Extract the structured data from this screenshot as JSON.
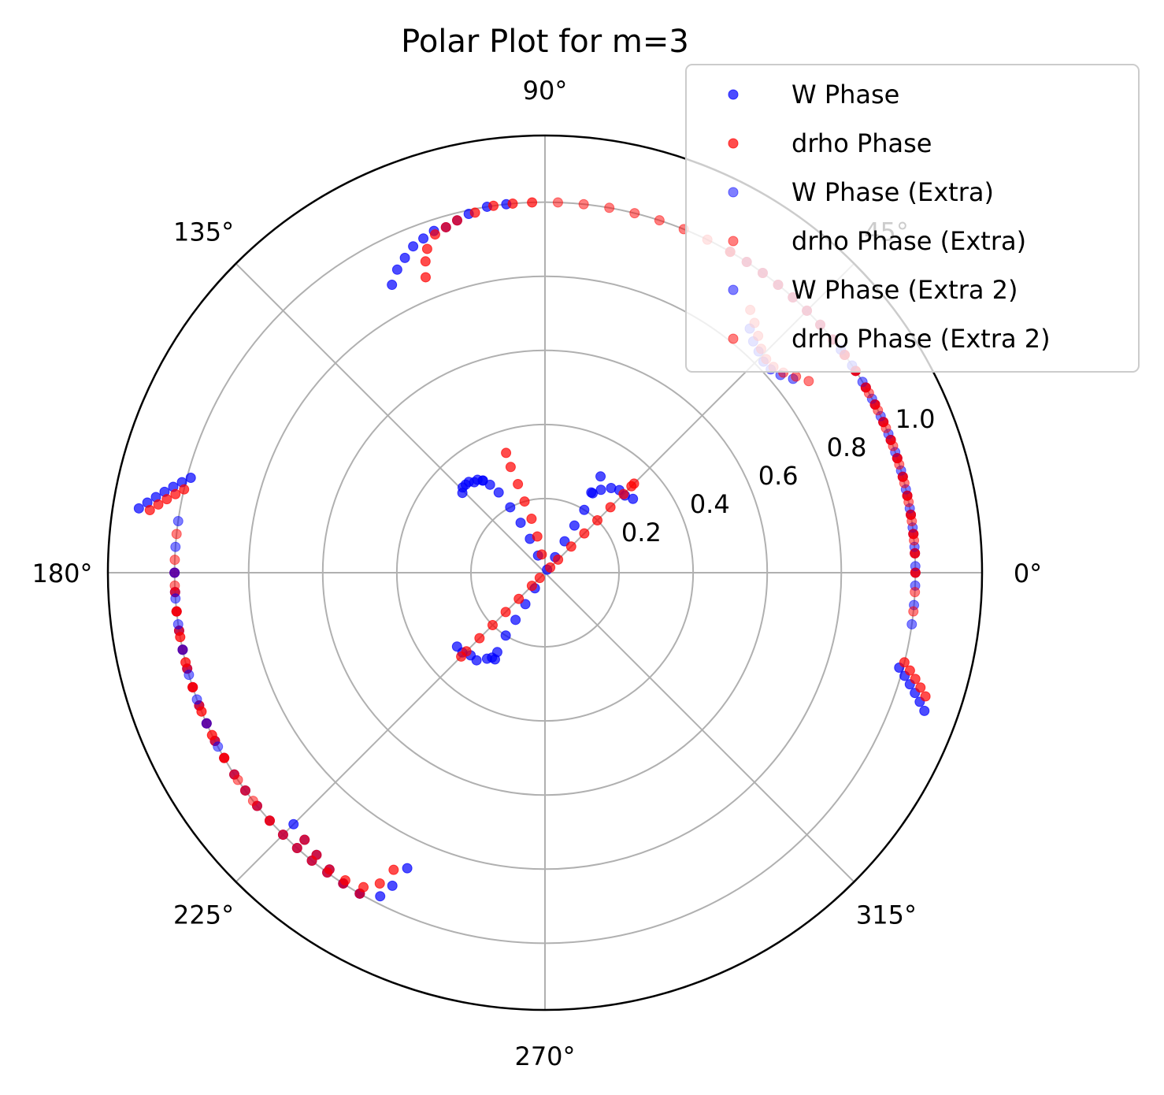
{
  "chart_data": {
    "type": "scatter",
    "projection": "polar",
    "title": "Polar Plot for m=3",
    "theta_ticks": [
      "0°",
      "45°",
      "90°",
      "135°",
      "180°",
      "225°",
      "270°",
      "315°"
    ],
    "theta_tick_values_deg": [
      0,
      45,
      90,
      135,
      180,
      225,
      270,
      315
    ],
    "r_ticks": [
      "0.2",
      "0.4",
      "0.6",
      "0.8",
      "1.0"
    ],
    "r_tick_values": [
      0.2,
      0.4,
      0.6,
      0.8,
      1.0
    ],
    "rlim": [
      0,
      1.18
    ],
    "grid": true,
    "legend_position": "top-right",
    "series": [
      {
        "name": "W Phase",
        "color": "#0000ff",
        "alpha": 0.7,
        "groups": [
          {
            "theta_deg": [
              0,
              3,
              6,
              9,
              12,
              15,
              18,
              21,
              24,
              27,
              30,
              33,
              36,
              39,
              42,
              45,
              48,
              51,
              54,
              57,
              60
            ],
            "r": [
              1.0,
              1.0,
              1.0,
              1.0,
              1.0,
              1.0,
              1.0,
              1.0,
              1.0,
              1.0,
              1.0,
              1.0,
              1.0,
              1.0,
              1.0,
              1.0,
              1.0,
              1.0,
              1.0,
              1.0,
              1.0
            ]
          },
          {
            "theta_deg": [
              -15,
              -16,
              -17,
              -18,
              -19,
              -20
            ],
            "r": [
              0.99,
              1.01,
              1.03,
              1.05,
              1.07,
              1.09
            ]
          },
          {
            "theta_deg": [
              96,
              99,
              102,
              104,
              106,
              108,
              110,
              112,
              114,
              116,
              118
            ],
            "r": [
              1.0,
              1.0,
              0.99,
              0.98,
              0.97,
              0.97,
              0.96,
              0.95,
              0.93,
              0.91,
              0.88
            ]
          },
          {
            "theta_deg": [
              165,
              166,
              167,
              168,
              169,
              170,
              171
            ],
            "r": [
              0.99,
              1.01,
              1.03,
              1.05,
              1.07,
              1.09,
              1.11
            ]
          },
          {
            "theta_deg": [
              180,
              183,
              186,
              189,
              192,
              195,
              198,
              201,
              204,
              207,
              210,
              213,
              216,
              219,
              222,
              225,
              228,
              231,
              234,
              237,
              240
            ],
            "r": [
              1.0,
              1.0,
              1.0,
              1.0,
              1.0,
              1.0,
              1.0,
              1.0,
              1.0,
              1.0,
              1.0,
              1.0,
              1.0,
              1.0,
              1.0,
              1.0,
              1.0,
              1.0,
              1.0,
              1.0,
              1.0
            ]
          },
          {
            "theta_deg": [
              225,
              228,
              231,
              234,
              237,
              240,
              243,
              244,
              245
            ],
            "r": [
              0.96,
              0.97,
              0.98,
              0.99,
              1.0,
              1.0,
              0.98,
              0.94,
              0.88
            ]
          },
          {
            "theta_deg": [
              56,
              57,
              58,
              58,
              58,
              59,
              60
            ],
            "r": [
              0.01,
              0.05,
              0.1,
              0.15,
              0.2,
              0.25,
              0.3
            ]
          },
          {
            "theta_deg": [
              40,
              44,
              48,
              52,
              56,
              60
            ],
            "r": [
              0.31,
              0.3,
              0.3,
              0.29,
              0.27,
              0.25
            ]
          },
          {
            "theta_deg": [
              112,
              114,
              116,
              118,
              120,
              122,
              124
            ],
            "r": [
              0.05,
              0.1,
              0.15,
              0.2,
              0.25,
              0.28,
              0.3
            ]
          },
          {
            "theta_deg": [
              124,
              126,
              128,
              130,
              132,
              134,
              136
            ],
            "r": [
              0.3,
              0.31,
              0.31,
              0.32,
              0.32,
              0.32,
              0.31
            ]
          },
          {
            "theta_deg": [
              237,
              238,
              238,
              238,
              239,
              240
            ],
            "r": [
              0.05,
              0.1,
              0.15,
              0.2,
              0.25,
              0.27
            ]
          },
          {
            "theta_deg": [
              220,
              224,
              228,
              232,
              236,
              238
            ],
            "r": [
              0.31,
              0.31,
              0.3,
              0.3,
              0.28,
              0.27
            ]
          }
        ]
      },
      {
        "name": "drho Phase",
        "color": "#ff0000",
        "alpha": 0.7,
        "groups": [
          {
            "theta_deg": [
              0,
              3,
              6,
              9,
              12,
              15,
              18,
              21,
              24,
              27,
              30,
              33,
              36,
              39,
              42,
              45,
              48,
              51,
              54,
              57,
              60
            ],
            "r": [
              1.0,
              1.0,
              1.0,
              1.0,
              1.0,
              1.0,
              1.0,
              1.0,
              1.0,
              1.0,
              1.0,
              1.0,
              1.0,
              1.0,
              1.0,
              1.0,
              1.0,
              1.0,
              1.0,
              1.0,
              1.0
            ]
          },
          {
            "theta_deg": [
              -14,
              -15,
              -16,
              -17,
              -18
            ],
            "r": [
              1.0,
              1.02,
              1.04,
              1.06,
              1.08
            ]
          },
          {
            "theta_deg": [
              92,
              95,
              98,
              101,
              104,
              106,
              108,
              110,
              111,
              112
            ],
            "r": [
              1.0,
              1.0,
              1.0,
              0.99,
              0.98,
              0.97,
              0.96,
              0.93,
              0.9,
              0.86
            ]
          },
          {
            "theta_deg": [
              167,
              168,
              169,
              170,
              171
            ],
            "r": [
              1.0,
              1.02,
              1.04,
              1.06,
              1.08
            ]
          },
          {
            "theta_deg": [
              180,
              183,
              186,
              189,
              192,
              195,
              198,
              201,
              204,
              207,
              210,
              213,
              216,
              219,
              222,
              225,
              228,
              231,
              234,
              237,
              240
            ],
            "r": [
              1.0,
              1.0,
              1.0,
              1.0,
              1.0,
              1.0,
              1.0,
              1.0,
              1.0,
              1.0,
              1.0,
              1.0,
              1.0,
              1.0,
              1.0,
              1.0,
              1.0,
              1.0,
              1.0,
              1.0,
              1.0
            ]
          },
          {
            "theta_deg": [
              228,
              231,
              234,
              237,
              240,
              242,
              243
            ],
            "r": [
              0.97,
              0.98,
              0.99,
              0.99,
              0.98,
              0.95,
              0.9
            ]
          },
          {
            "theta_deg": [
              45,
              45,
              45,
              45,
              45,
              45,
              45,
              45,
              45
            ],
            "r": [
              0.02,
              0.05,
              0.1,
              0.15,
              0.2,
              0.25,
              0.3,
              0.33,
              0.34
            ]
          },
          {
            "theta_deg": [
              225,
              225,
              225,
              225,
              225,
              225,
              225,
              225
            ],
            "r": [
              0.02,
              0.05,
              0.1,
              0.15,
              0.2,
              0.25,
              0.3,
              0.32
            ]
          },
          {
            "theta_deg": [
              100,
              102,
              104,
              106,
              107,
              108,
              108
            ],
            "r": [
              0.05,
              0.1,
              0.15,
              0.2,
              0.25,
              0.3,
              0.34
            ]
          }
        ]
      },
      {
        "name": "W Phase (Extra)",
        "color": "#0000ff",
        "alpha": 0.5,
        "groups": [
          {
            "theta_deg": [
              -8,
              -5,
              -2,
              1,
              4,
              7,
              10,
              13,
              16,
              19,
              22,
              25,
              28,
              31,
              34,
              37
            ],
            "r": [
              1.0,
              1.0,
              1.0,
              1.0,
              1.0,
              1.0,
              1.0,
              1.0,
              1.0,
              1.0,
              1.0,
              1.0,
              1.0,
              1.0,
              1.0,
              1.0
            ]
          },
          {
            "theta_deg": [
              172,
              176,
              180,
              184,
              188,
              192,
              196,
              200,
              204,
              208
            ],
            "r": [
              1.0,
              1.0,
              1.0,
              1.0,
              1.0,
              1.0,
              1.0,
              1.0,
              1.0,
              1.0
            ]
          }
        ]
      },
      {
        "name": "drho Phase (Extra)",
        "color": "#ff0000",
        "alpha": 0.5,
        "groups": [
          {
            "theta_deg": [
              -6,
              -3,
              0,
              3,
              6,
              9,
              12,
              15,
              18,
              21,
              24,
              27,
              30,
              33,
              36
            ],
            "r": [
              1.0,
              1.0,
              1.0,
              1.0,
              1.0,
              1.0,
              1.0,
              1.0,
              1.0,
              1.0,
              1.0,
              1.0,
              1.0,
              1.0,
              1.0
            ]
          },
          {
            "theta_deg": [
              174,
              178,
              182,
              186,
              190,
              194,
              198,
              202,
              206,
              210
            ],
            "r": [
              1.0,
              1.0,
              1.0,
              1.0,
              1.0,
              1.0,
              1.0,
              1.0,
              1.0,
              1.0
            ]
          }
        ]
      },
      {
        "name": "W Phase (Extra 2)",
        "color": "#0000ff",
        "alpha": 0.5,
        "groups": [
          {
            "theta_deg": [
              38,
              40,
              42,
              44,
              46,
              48,
              50
            ],
            "r": [
              0.85,
              0.83,
              0.82,
              0.82,
              0.83,
              0.84,
              0.86
            ]
          }
        ]
      },
      {
        "name": "drho Phase (Extra 2)",
        "color": "#ff0000",
        "alpha": 0.5,
        "groups": [
          {
            "theta_deg": [
              36,
              38,
              40,
              42,
              44,
              46,
              48,
              50,
              52
            ],
            "r": [
              0.88,
              0.86,
              0.84,
              0.83,
              0.83,
              0.84,
              0.86,
              0.88,
              0.9
            ]
          },
          {
            "theta_deg": [
              60,
              64,
              68,
              72,
              76,
              80,
              84,
              88
            ],
            "r": [
              1.0,
              1.0,
              1.0,
              1.0,
              1.0,
              1.0,
              1.0,
              1.0
            ]
          },
          {
            "theta_deg": [
              5,
              8,
              11,
              14,
              17,
              20,
              23,
              26,
              29
            ],
            "r": [
              1.0,
              1.0,
              1.0,
              1.0,
              1.0,
              1.0,
              1.0,
              1.0,
              1.0
            ]
          },
          {
            "theta_deg": [
              186,
              190,
              194,
              198,
              202,
              206,
              210,
              214,
              218,
              222
            ],
            "r": [
              1.0,
              1.0,
              1.0,
              1.0,
              1.0,
              1.0,
              1.0,
              1.0,
              1.0,
              1.0
            ]
          }
        ]
      }
    ]
  }
}
